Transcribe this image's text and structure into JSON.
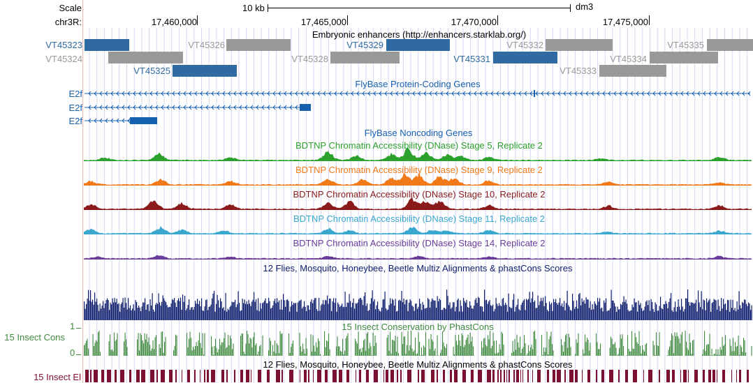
{
  "ruler": {
    "scale_label": "Scale",
    "scale_bar_text": "10 kb",
    "assembly": "dm3",
    "chrom_label": "chr3R:",
    "positions": [
      "17,460,000",
      "17,465,000",
      "17,470,000",
      "17,475,000"
    ]
  },
  "tracks": {
    "enhancers": {
      "title": "Embryonic enhancers (http://enhancers.starklab.org/)",
      "items": [
        {
          "name": "VT45323",
          "active": true
        },
        {
          "name": "VT45324",
          "active": false
        },
        {
          "name": "VT45325",
          "active": true
        },
        {
          "name": "VT45326",
          "active": false
        },
        {
          "name": "VT45328",
          "active": false
        },
        {
          "name": "VT45329",
          "active": true
        },
        {
          "name": "VT45331",
          "active": true
        },
        {
          "name": "VT45332",
          "active": false
        },
        {
          "name": "VT45333",
          "active": false
        },
        {
          "name": "VT45334",
          "active": false
        },
        {
          "name": "VT45335",
          "active": false
        }
      ]
    },
    "genes": {
      "title": "FlyBase Protein-Coding Genes",
      "transcripts": [
        "E2f",
        "E2f",
        "E2f"
      ]
    },
    "noncoding": {
      "title": "FlyBase Noncoding Genes"
    },
    "dnase": [
      {
        "title": "BDTNP Chromatin Accessibility (DNase) Stage 5, Replicate 2",
        "color": "#2ca02c"
      },
      {
        "title": "BDTNP Chromatin Accessibility (DNase) Stage 9, Replicate 2",
        "color": "#f07a1a"
      },
      {
        "title": "BDTNP Chromatin Accessibility (DNase) Stage 10, Replicate 2",
        "color": "#8b1a1a"
      },
      {
        "title": "BDTNP Chromatin Accessibility (DNase) Stage 11, Replicate 2",
        "color": "#3aa7cf"
      },
      {
        "title": "BDTNP Chromatin Accessibility (DNase) Stage 14, Replicate 2",
        "color": "#6a3d9a"
      }
    ],
    "multiz": {
      "title": "12 Flies, Mosquito, Honeybee, Beetle Multiz Alignments & phastCons Scores",
      "color": "#0d1d6b"
    },
    "phastcons": {
      "title": "15 Insect Conservation by PhastCons",
      "side_label": "15 Insect Cons",
      "ymax": "1",
      "ymin": "0",
      "color": "#3f8a3f"
    },
    "elements": {
      "title": "12 Flies, Mosquito, Honeybee, Beetle Multiz Alignments & phastCons Scores",
      "side_label": "15 Insect El",
      "color": "#7b1030"
    }
  },
  "colors": {
    "enhancer_active": "#2f6aa1",
    "enhancer_inactive": "#999999",
    "gene": "#1660b0",
    "grid_line": "#d6d6f4",
    "left_border": "#f2b8b8"
  }
}
